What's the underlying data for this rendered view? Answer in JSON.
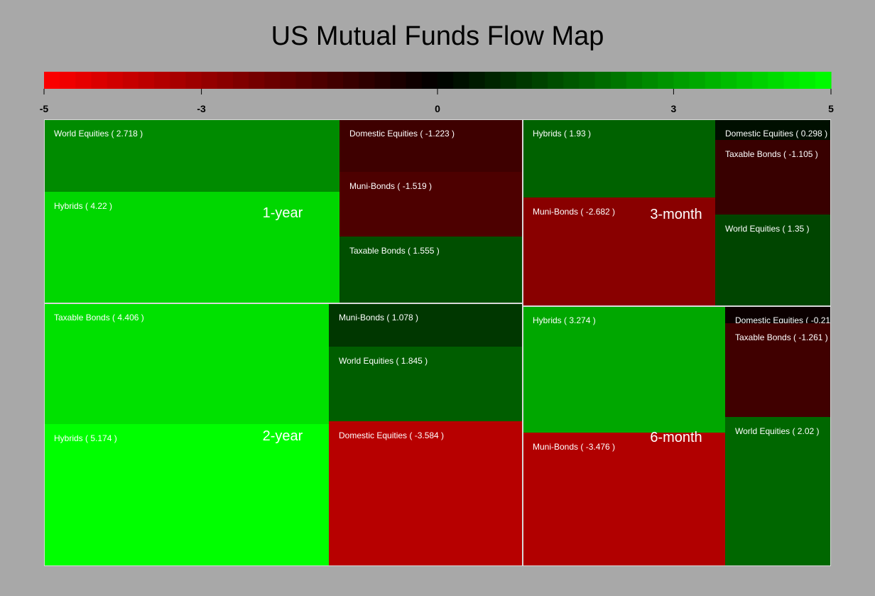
{
  "chart_data": {
    "type": "treemap",
    "title": "US Mutual Funds Flow Map",
    "color_scale": {
      "min": -5,
      "max": 5,
      "ticks": [
        "-5",
        "-3",
        "0",
        "3",
        "5"
      ],
      "tick_values": [
        -5,
        -3,
        0,
        3,
        5
      ],
      "colors": {
        "negative": "#ff0000",
        "zero": "#000000",
        "positive": "#00ff00"
      }
    },
    "groups": [
      {
        "label": "1-year",
        "cells": [
          {
            "name": "World Equities",
            "value": 2.718,
            "label": "World Equities ( 2.718 )"
          },
          {
            "name": "Hybrids",
            "value": 4.22,
            "label": "Hybrids ( 4.22 )"
          },
          {
            "name": "Domestic Equities",
            "value": -1.223,
            "label": "Domestic Equities ( -1.223 )"
          },
          {
            "name": "Muni-Bonds",
            "value": -1.519,
            "label": "Muni-Bonds ( -1.519 )"
          },
          {
            "name": "Taxable Bonds",
            "value": 1.555,
            "label": "Taxable Bonds ( 1.555 )"
          }
        ]
      },
      {
        "label": "2-year",
        "cells": [
          {
            "name": "Taxable Bonds",
            "value": 4.406,
            "label": "Taxable Bonds ( 4.406 )"
          },
          {
            "name": "Hybrids",
            "value": 5.174,
            "label": "Hybrids ( 5.174 )"
          },
          {
            "name": "Muni-Bonds",
            "value": 1.078,
            "label": "Muni-Bonds ( 1.078 )"
          },
          {
            "name": "World Equities",
            "value": 1.845,
            "label": "World Equities ( 1.845 )"
          },
          {
            "name": "Domestic Equities",
            "value": -3.584,
            "label": "Domestic Equities ( -3.584 )"
          }
        ]
      },
      {
        "label": "3-month",
        "cells": [
          {
            "name": "Hybrids",
            "value": 1.93,
            "label": "Hybrids ( 1.93 )"
          },
          {
            "name": "Muni-Bonds",
            "value": -2.682,
            "label": "Muni-Bonds ( -2.682 )"
          },
          {
            "name": "Domestic Equities",
            "value": 0.298,
            "label": "Domestic Equities ( 0.298 )"
          },
          {
            "name": "Taxable Bonds",
            "value": -1.105,
            "label": "Taxable Bonds ( -1.105 )"
          },
          {
            "name": "World Equities",
            "value": 1.35,
            "label": "World Equities ( 1.35 )"
          }
        ]
      },
      {
        "label": "6-month",
        "cells": [
          {
            "name": "Hybrids",
            "value": 3.274,
            "label": "Hybrids ( 3.274 )"
          },
          {
            "name": "Muni-Bonds",
            "value": -3.476,
            "label": "Muni-Bonds ( -3.476 )"
          },
          {
            "name": "Domestic Equities",
            "value": -0.21,
            "label": "Domestic Equities ( -0.21"
          },
          {
            "name": "Taxable Bonds",
            "value": -1.261,
            "label": "Taxable Bonds ( -1.261 )"
          },
          {
            "name": "World Equities",
            "value": 2.02,
            "label": "World Equities ( 2.02 )"
          }
        ]
      }
    ]
  }
}
